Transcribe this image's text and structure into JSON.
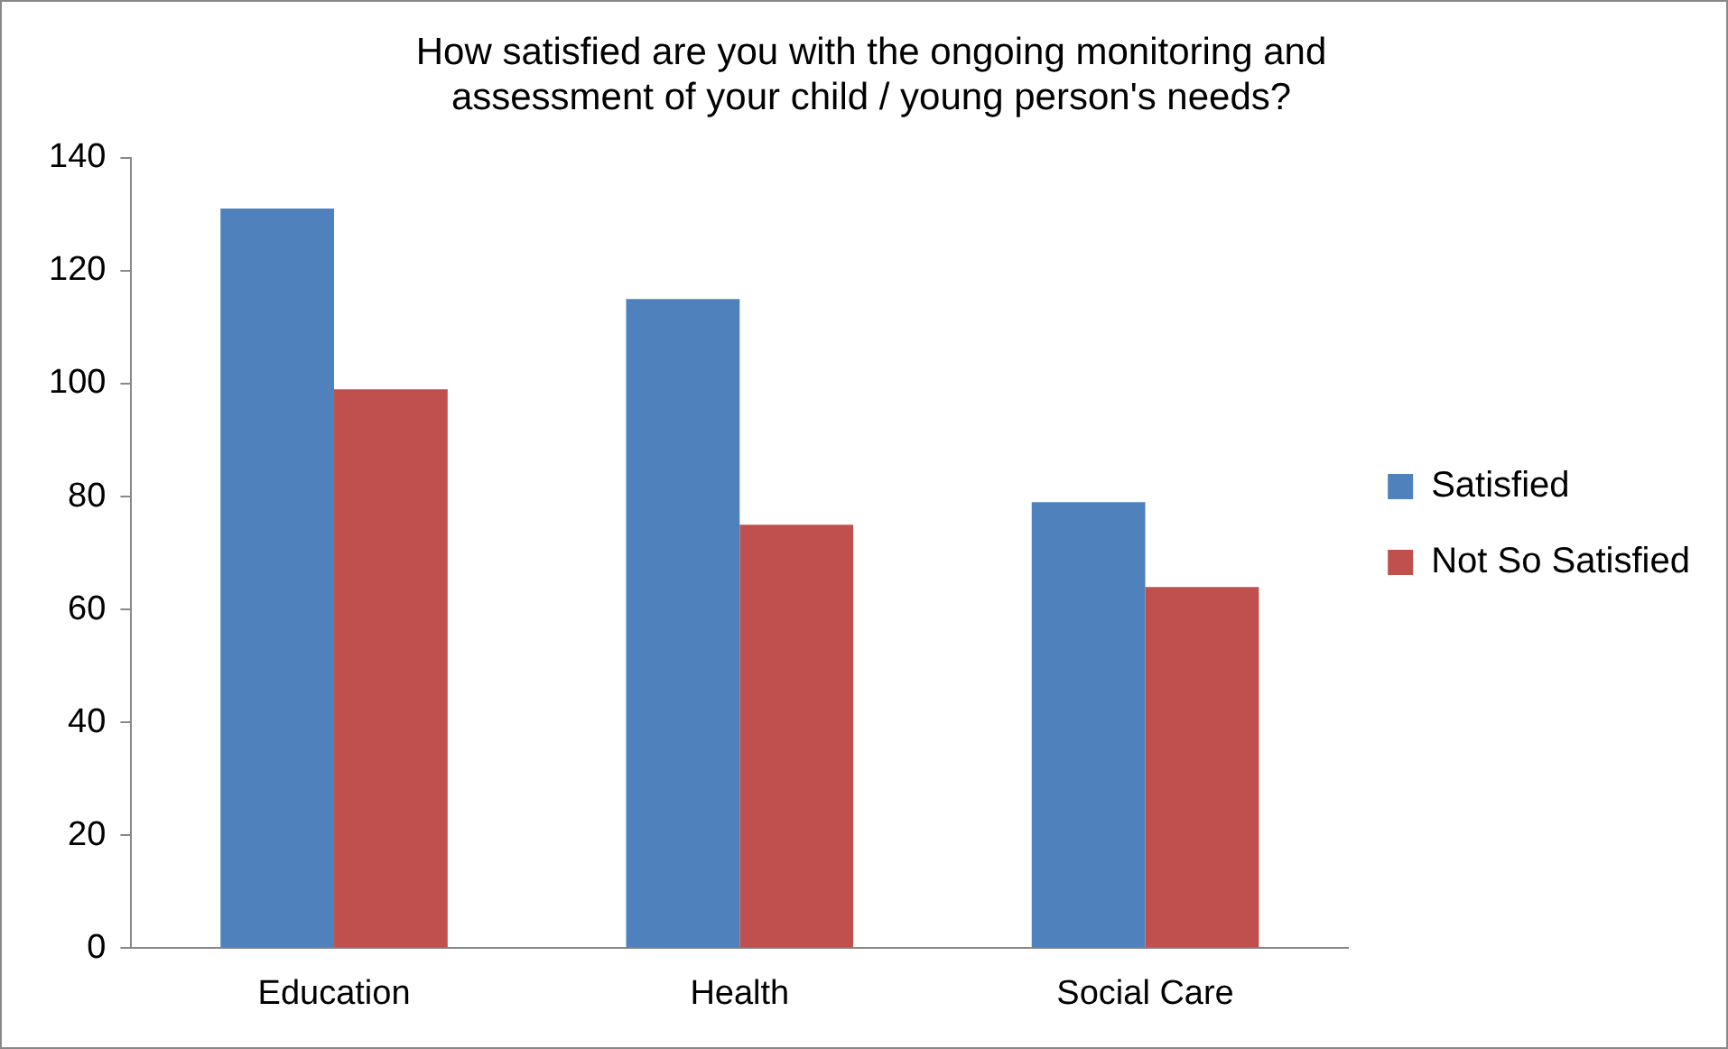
{
  "chart_data": {
    "type": "bar",
    "title": "How satisfied are you with the ongoing monitoring and\nassessment of your child / young person's needs?",
    "categories": [
      "Education",
      "Health",
      "Social Care"
    ],
    "series": [
      {
        "name": "Satisfied",
        "color": "#4f81bd",
        "values": [
          131,
          115,
          79
        ]
      },
      {
        "name": "Not So Satisfied",
        "color": "#c0504d",
        "values": [
          99,
          75,
          64
        ]
      }
    ],
    "ylim": [
      0,
      140
    ],
    "yticks": [
      0,
      20,
      40,
      60,
      80,
      100,
      120,
      140
    ],
    "grid": false,
    "legend": "right"
  }
}
